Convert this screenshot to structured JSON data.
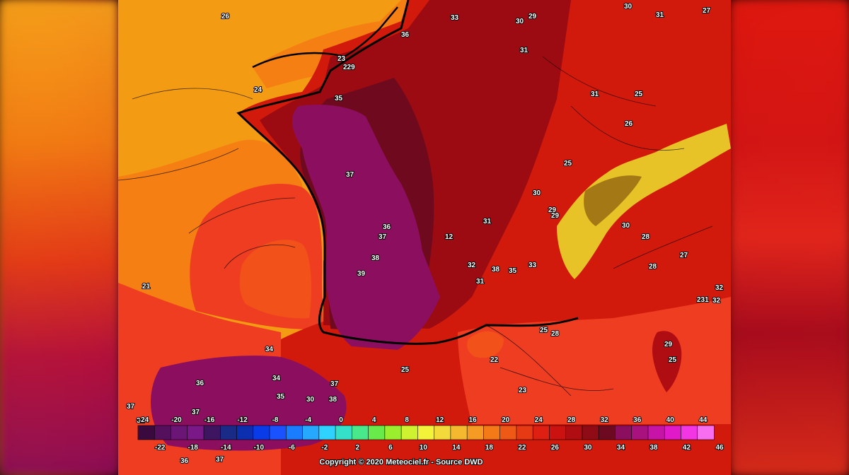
{
  "copyright": "Copyright © 2020 Meteociel.fr - Source DWD",
  "colors": {
    "sea_orange": "#f49b14",
    "sea_deep_orange": "#f57f12",
    "sea_red": "#ef3d22",
    "land_red": "#d21a0c",
    "land_dark_red": "#9b0b11",
    "hot_maroon": "#6f0a1e",
    "hot_purple": "#8b0f5e",
    "alps_yellow": "#e8c327"
  },
  "temperature_labels": [
    "26",
    "33",
    "30",
    "29",
    "30",
    "31",
    "27",
    "36",
    "31",
    "23",
    "229",
    "24",
    "35",
    "31",
    "25",
    "26",
    "37",
    "25",
    "30",
    "29",
    "29",
    "30",
    "28",
    "27",
    "28",
    "32",
    "32",
    "31",
    "231",
    "36",
    "37",
    "12",
    "32",
    "38",
    "38",
    "35",
    "33",
    "39",
    "31",
    "21",
    "29",
    "25",
    "25",
    "28",
    "22",
    "23",
    "25",
    "34",
    "36",
    "34",
    "37",
    "35",
    "30",
    "38",
    "37",
    "37",
    "31",
    "37",
    "36"
  ],
  "colorbar": {
    "top_ticks": [
      "-24",
      "-20",
      "-16",
      "-12",
      "-8",
      "-4",
      "0",
      "4",
      "8",
      "12",
      "16",
      "20",
      "24",
      "28",
      "32",
      "36",
      "40",
      "44"
    ],
    "bottom_ticks": [
      "-22",
      "-18",
      "-14",
      "-10",
      "-6",
      "-2",
      "2",
      "6",
      "10",
      "14",
      "18",
      "22",
      "26",
      "30",
      "34",
      "38",
      "42",
      "46"
    ],
    "swatches": [
      "#3a0a3f",
      "#54105c",
      "#6b1677",
      "#7a1887",
      "#3e1561",
      "#1a2a87",
      "#0b2fae",
      "#0a3be8",
      "#1b52ff",
      "#1a7cff",
      "#27a8ff",
      "#2fd2ff",
      "#35e0c8",
      "#49e88a",
      "#67ea4a",
      "#9aee2e",
      "#cff230",
      "#f3f43a",
      "#f4d93a",
      "#f5b930",
      "#f59a22",
      "#f47a18",
      "#ee5a16",
      "#e63a14",
      "#dd2011",
      "#cc1210",
      "#b00d12",
      "#8f0b16",
      "#6d0a21",
      "#8b0f5e",
      "#a8117e",
      "#c714a6",
      "#e11ac9",
      "#f236e3",
      "#f76ff0"
    ]
  }
}
